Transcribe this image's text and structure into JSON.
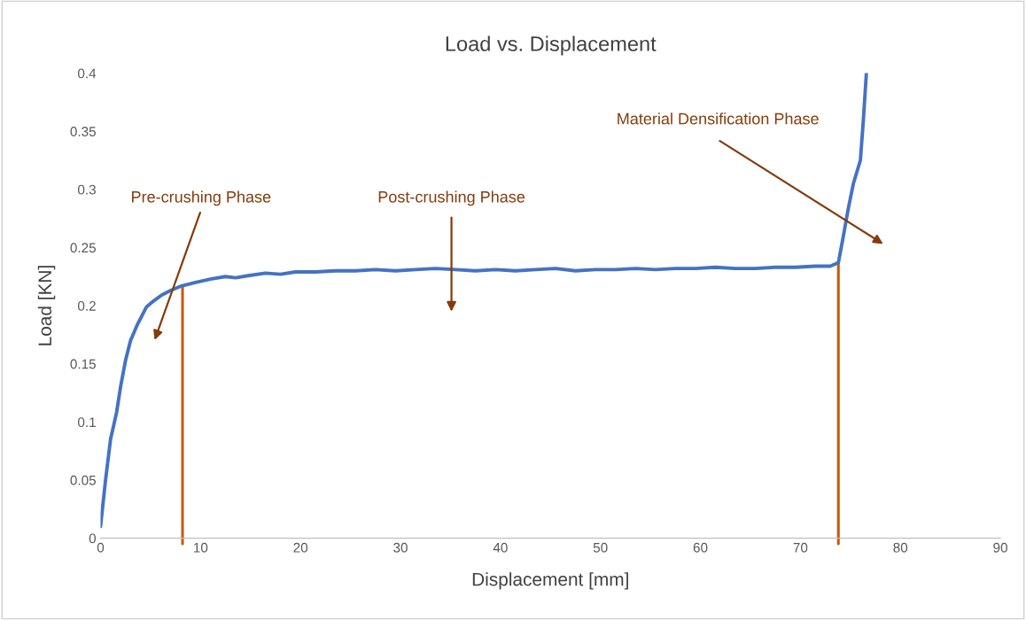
{
  "chart_data": {
    "type": "line",
    "title": "Load vs. Displacement",
    "xlabel": "Displacement [mm]",
    "ylabel": "Load [KN]",
    "series": [
      {
        "color": "#4472c4",
        "x": [
          0,
          0.5,
          1,
          1.6,
          2.0,
          2.5,
          3.0,
          3.7,
          4.6,
          5.3,
          6.1,
          7.0,
          8.1,
          9.5,
          11.1,
          12.5,
          13.5,
          14.9,
          16.5,
          18.0,
          19.5,
          21.5,
          23.5,
          25.5,
          27.5,
          29.5,
          31.5,
          33.5,
          35.5,
          37.5,
          39.5,
          41.5,
          43.5,
          45.5,
          47.5,
          49.5,
          51.5,
          53.5,
          55.5,
          57.5,
          59.5,
          61.5,
          63.5,
          65.5,
          67.5,
          69.5,
          71.5,
          73.0,
          73.8,
          74.3,
          74.8,
          75.3,
          76.0,
          76.3,
          76.6
        ],
        "values": [
          0.01,
          0.05,
          0.085,
          0.108,
          0.13,
          0.153,
          0.17,
          0.184,
          0.199,
          0.204,
          0.209,
          0.213,
          0.217,
          0.22,
          0.223,
          0.225,
          0.224,
          0.226,
          0.228,
          0.227,
          0.229,
          0.229,
          0.23,
          0.23,
          0.231,
          0.23,
          0.231,
          0.232,
          0.231,
          0.23,
          0.231,
          0.23,
          0.231,
          0.232,
          0.23,
          0.231,
          0.231,
          0.232,
          0.231,
          0.232,
          0.232,
          0.233,
          0.232,
          0.232,
          0.233,
          0.233,
          0.234,
          0.234,
          0.237,
          0.26,
          0.284,
          0.305,
          0.325,
          0.36,
          0.4
        ]
      }
    ],
    "xlim": [
      0,
      90
    ],
    "xticks": [
      0,
      10,
      20,
      30,
      40,
      50,
      60,
      70,
      80,
      90
    ],
    "ylim": [
      0,
      0.4
    ],
    "yticks": [
      0,
      0.05,
      0.1,
      0.15,
      0.2,
      0.25,
      0.3,
      0.35,
      0.4
    ],
    "grid": false,
    "ref_lines": [
      {
        "axis": "x",
        "value": 8.2,
        "color": "#c55a11"
      },
      {
        "axis": "x",
        "value": 73.8,
        "color": "#c55a11"
      }
    ],
    "annotations": [
      "Pre-crushing Phase",
      "Post-crushing Phase",
      "Material Densification Phase"
    ]
  }
}
